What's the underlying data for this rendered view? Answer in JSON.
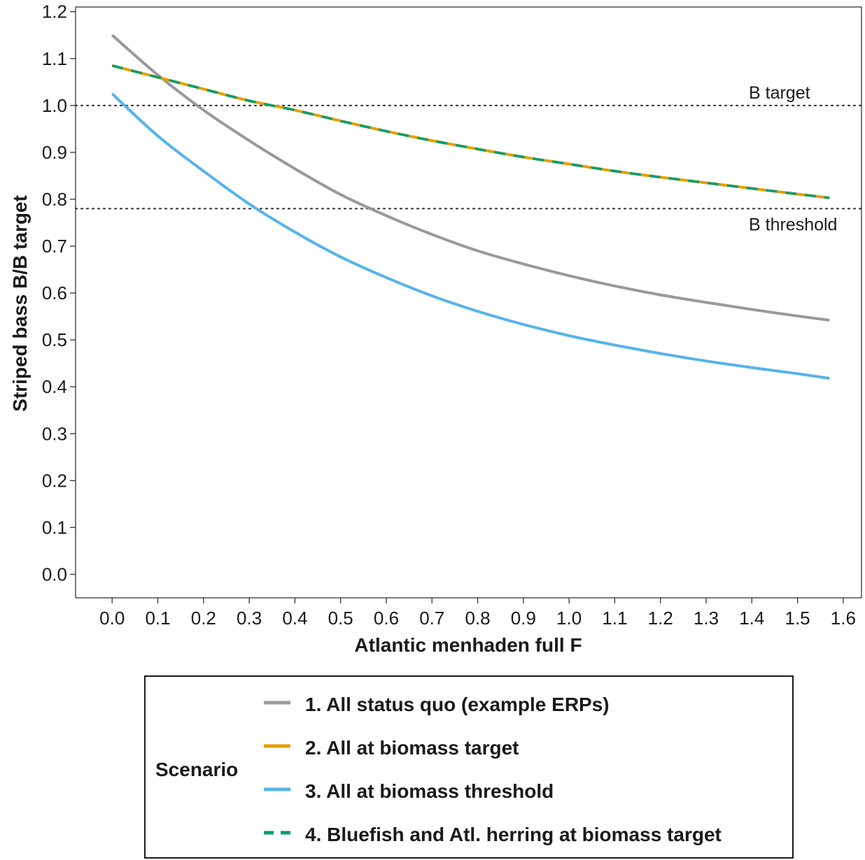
{
  "chart_data": {
    "type": "line",
    "xlabel": "Atlantic menhaden full F",
    "ylabel": "Striped bass B/B target",
    "xlim": [
      -0.08,
      1.64
    ],
    "ylim": [
      -0.05,
      1.21
    ],
    "x_ticks": [
      "0.0",
      "0.1",
      "0.2",
      "0.3",
      "0.4",
      "0.5",
      "0.6",
      "0.7",
      "0.8",
      "0.9",
      "1.0",
      "1.1",
      "1.2",
      "1.3",
      "1.4",
      "1.5",
      "1.6"
    ],
    "y_ticks": [
      "0.0",
      "0.1",
      "0.2",
      "0.3",
      "0.4",
      "0.5",
      "0.6",
      "0.7",
      "0.8",
      "0.9",
      "1.0",
      "1.1",
      "1.2"
    ],
    "grid": false,
    "reference_lines": [
      {
        "label": "B target",
        "y": 1.0,
        "style": "dotted"
      },
      {
        "label": "B threshold",
        "y": 0.78,
        "style": "dotted"
      }
    ],
    "x": [
      0.0,
      0.1,
      0.2,
      0.3,
      0.4,
      0.5,
      0.6,
      0.7,
      0.8,
      0.9,
      1.0,
      1.1,
      1.2,
      1.3,
      1.4,
      1.5,
      1.57
    ],
    "series": [
      {
        "name": "1. All status quo (example ERPs)",
        "color": "#999999",
        "dash": "solid",
        "values": [
          1.15,
          1.065,
          0.99,
          0.925,
          0.865,
          0.81,
          0.765,
          0.725,
          0.69,
          0.662,
          0.637,
          0.615,
          0.596,
          0.58,
          0.565,
          0.551,
          0.542
        ]
      },
      {
        "name": "2. All at biomass target",
        "color": "#E69F00",
        "dash": "solid",
        "values": [
          1.085,
          1.06,
          1.035,
          1.01,
          0.99,
          0.967,
          0.945,
          0.925,
          0.907,
          0.89,
          0.875,
          0.86,
          0.847,
          0.835,
          0.823,
          0.811,
          0.803
        ]
      },
      {
        "name": "3. All at biomass threshold",
        "color": "#56B4E9",
        "dash": "solid",
        "values": [
          1.025,
          0.935,
          0.86,
          0.79,
          0.73,
          0.677,
          0.633,
          0.594,
          0.561,
          0.533,
          0.509,
          0.489,
          0.471,
          0.455,
          0.441,
          0.428,
          0.418
        ]
      },
      {
        "name": "4. Bluefish and Atl. herring at biomass target",
        "color": "#009E73",
        "dash": "dashed",
        "values": [
          1.085,
          1.06,
          1.035,
          1.01,
          0.99,
          0.967,
          0.945,
          0.925,
          0.907,
          0.89,
          0.875,
          0.86,
          0.847,
          0.835,
          0.823,
          0.811,
          0.803
        ]
      }
    ],
    "legend": {
      "title": "Scenario",
      "placement": "bottom",
      "entries": [
        "1. All status quo (example ERPs)",
        "2. All at biomass target",
        "3. All at biomass threshold",
        "4. Bluefish and Atl. herring at biomass target"
      ]
    }
  }
}
